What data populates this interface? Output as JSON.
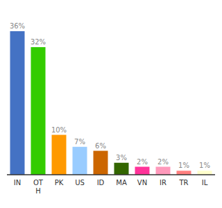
{
  "chart_data": {
    "type": "bar",
    "categories": [
      "IN",
      "OT\nH",
      "PK",
      "US",
      "ID",
      "MA",
      "VN",
      "IR",
      "TR",
      "IL"
    ],
    "values": [
      36,
      32,
      10,
      7,
      6,
      3,
      2,
      2,
      1,
      1
    ],
    "value_labels": [
      "36%",
      "32%",
      "10%",
      "7%",
      "6%",
      "3%",
      "2%",
      "2%",
      "1%",
      "1%"
    ],
    "colors": [
      "#4472c4",
      "#33cc00",
      "#ff9900",
      "#99ccff",
      "#cc6600",
      "#336600",
      "#ff3399",
      "#ff99bb",
      "#ff8080",
      "#ffffcc"
    ],
    "ylim": [
      0,
      40
    ],
    "data_labels": true,
    "tick_labels": "x"
  }
}
